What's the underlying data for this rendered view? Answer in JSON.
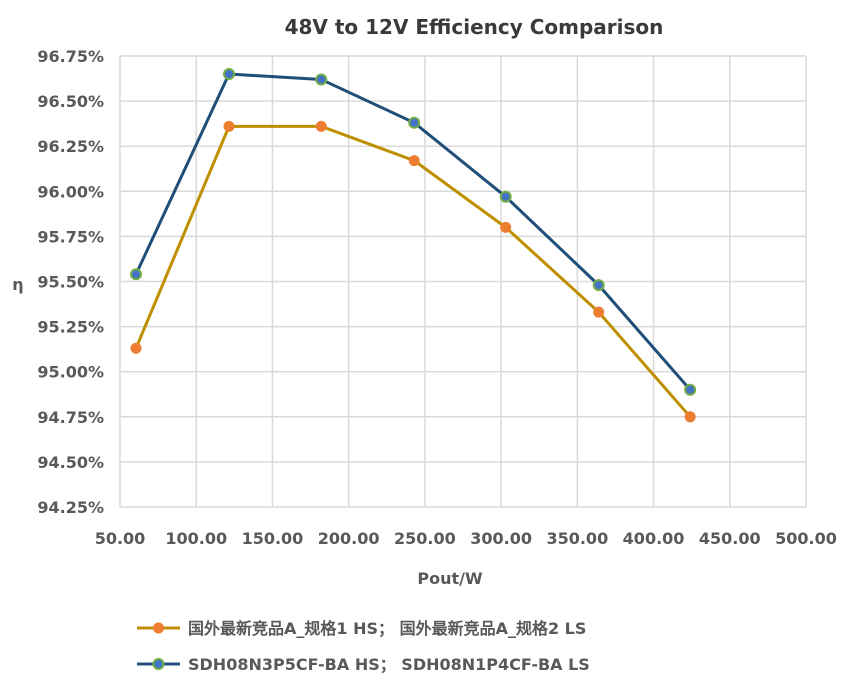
{
  "chart_data": {
    "type": "line",
    "title": "48V to 12V Efficiency Comparison",
    "xlabel": "Pout/W",
    "ylabel": "η",
    "xlim": [
      50,
      500
    ],
    "ylim": [
      94.25,
      96.75
    ],
    "x_ticks": [
      "50.00",
      "100.00",
      "150.00",
      "200.00",
      "250.00",
      "300.00",
      "350.00",
      "400.00",
      "450.00",
      "500.00"
    ],
    "y_ticks": [
      "94.25%",
      "94.50%",
      "94.75%",
      "95.00%",
      "95.25%",
      "95.50%",
      "95.75%",
      "96.00%",
      "96.25%",
      "96.50%",
      "96.75%"
    ],
    "grid": true,
    "legend_position": "bottom",
    "series": [
      {
        "name": "国外最新竞品A_规格1 HS； 国外最新竞品A_规格2 LS",
        "line_color": "#BF8F00",
        "marker_color": "#ED7D31",
        "marker_edge": "#ED7D31",
        "x": [
          60.5,
          121.5,
          182,
          243,
          303,
          364,
          424
        ],
        "y": [
          95.13,
          96.36,
          96.36,
          96.17,
          95.8,
          95.33,
          94.75
        ]
      },
      {
        "name": "SDH08N3P5CF-BA HS； SDH08N1P4CF-BA LS",
        "line_color": "#1F4E79",
        "marker_color": "#4472C4",
        "marker_edge": "#70AD47",
        "x": [
          60.5,
          121.5,
          182,
          243,
          303,
          364,
          424
        ],
        "y": [
          95.54,
          96.65,
          96.62,
          96.38,
          95.97,
          95.48,
          94.9
        ]
      }
    ]
  }
}
